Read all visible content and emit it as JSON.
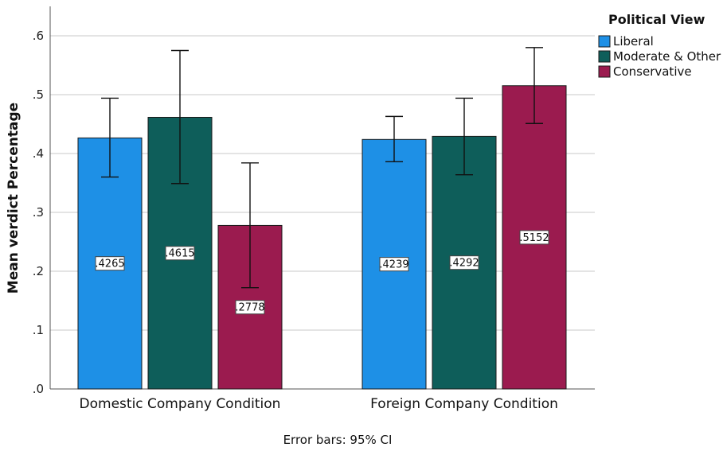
{
  "chart_data": {
    "type": "bar",
    "title": "",
    "xlabel": "",
    "ylabel": "Mean verdict Percentage",
    "ylim": [
      0,
      0.65
    ],
    "yticks": [
      0,
      0.1,
      0.2,
      0.3,
      0.4,
      0.5,
      0.6
    ],
    "ytick_labels": [
      ".0",
      ".1",
      ".2",
      ".3",
      ".4",
      ".5",
      ".6"
    ],
    "grid": true,
    "categories": [
      "Domestic Company Condition",
      "Foreign Company Condition"
    ],
    "legend": {
      "title": "Political View",
      "placement": "top-right"
    },
    "series": [
      {
        "name": "Liberal",
        "color": "#1e90e6",
        "values": [
          0.4265,
          0.4239
        ],
        "labels": [
          ".4265",
          ".4239"
        ],
        "ci_low": [
          0.36,
          0.386
        ],
        "ci_high": [
          0.494,
          0.463
        ]
      },
      {
        "name": "Moderate & Other",
        "color": "#0e5e5a",
        "values": [
          0.4615,
          0.4292
        ],
        "labels": [
          ".4615",
          ".4292"
        ],
        "ci_low": [
          0.349,
          0.364
        ],
        "ci_high": [
          0.575,
          0.494
        ]
      },
      {
        "name": "Conservative",
        "color": "#9b1b4f",
        "values": [
          0.2778,
          0.5152
        ],
        "labels": [
          ".2778",
          ".5152"
        ],
        "ci_low": [
          0.172,
          0.451
        ],
        "ci_high": [
          0.384,
          0.58
        ]
      }
    ],
    "footnote": "Error bars: 95% CI"
  }
}
